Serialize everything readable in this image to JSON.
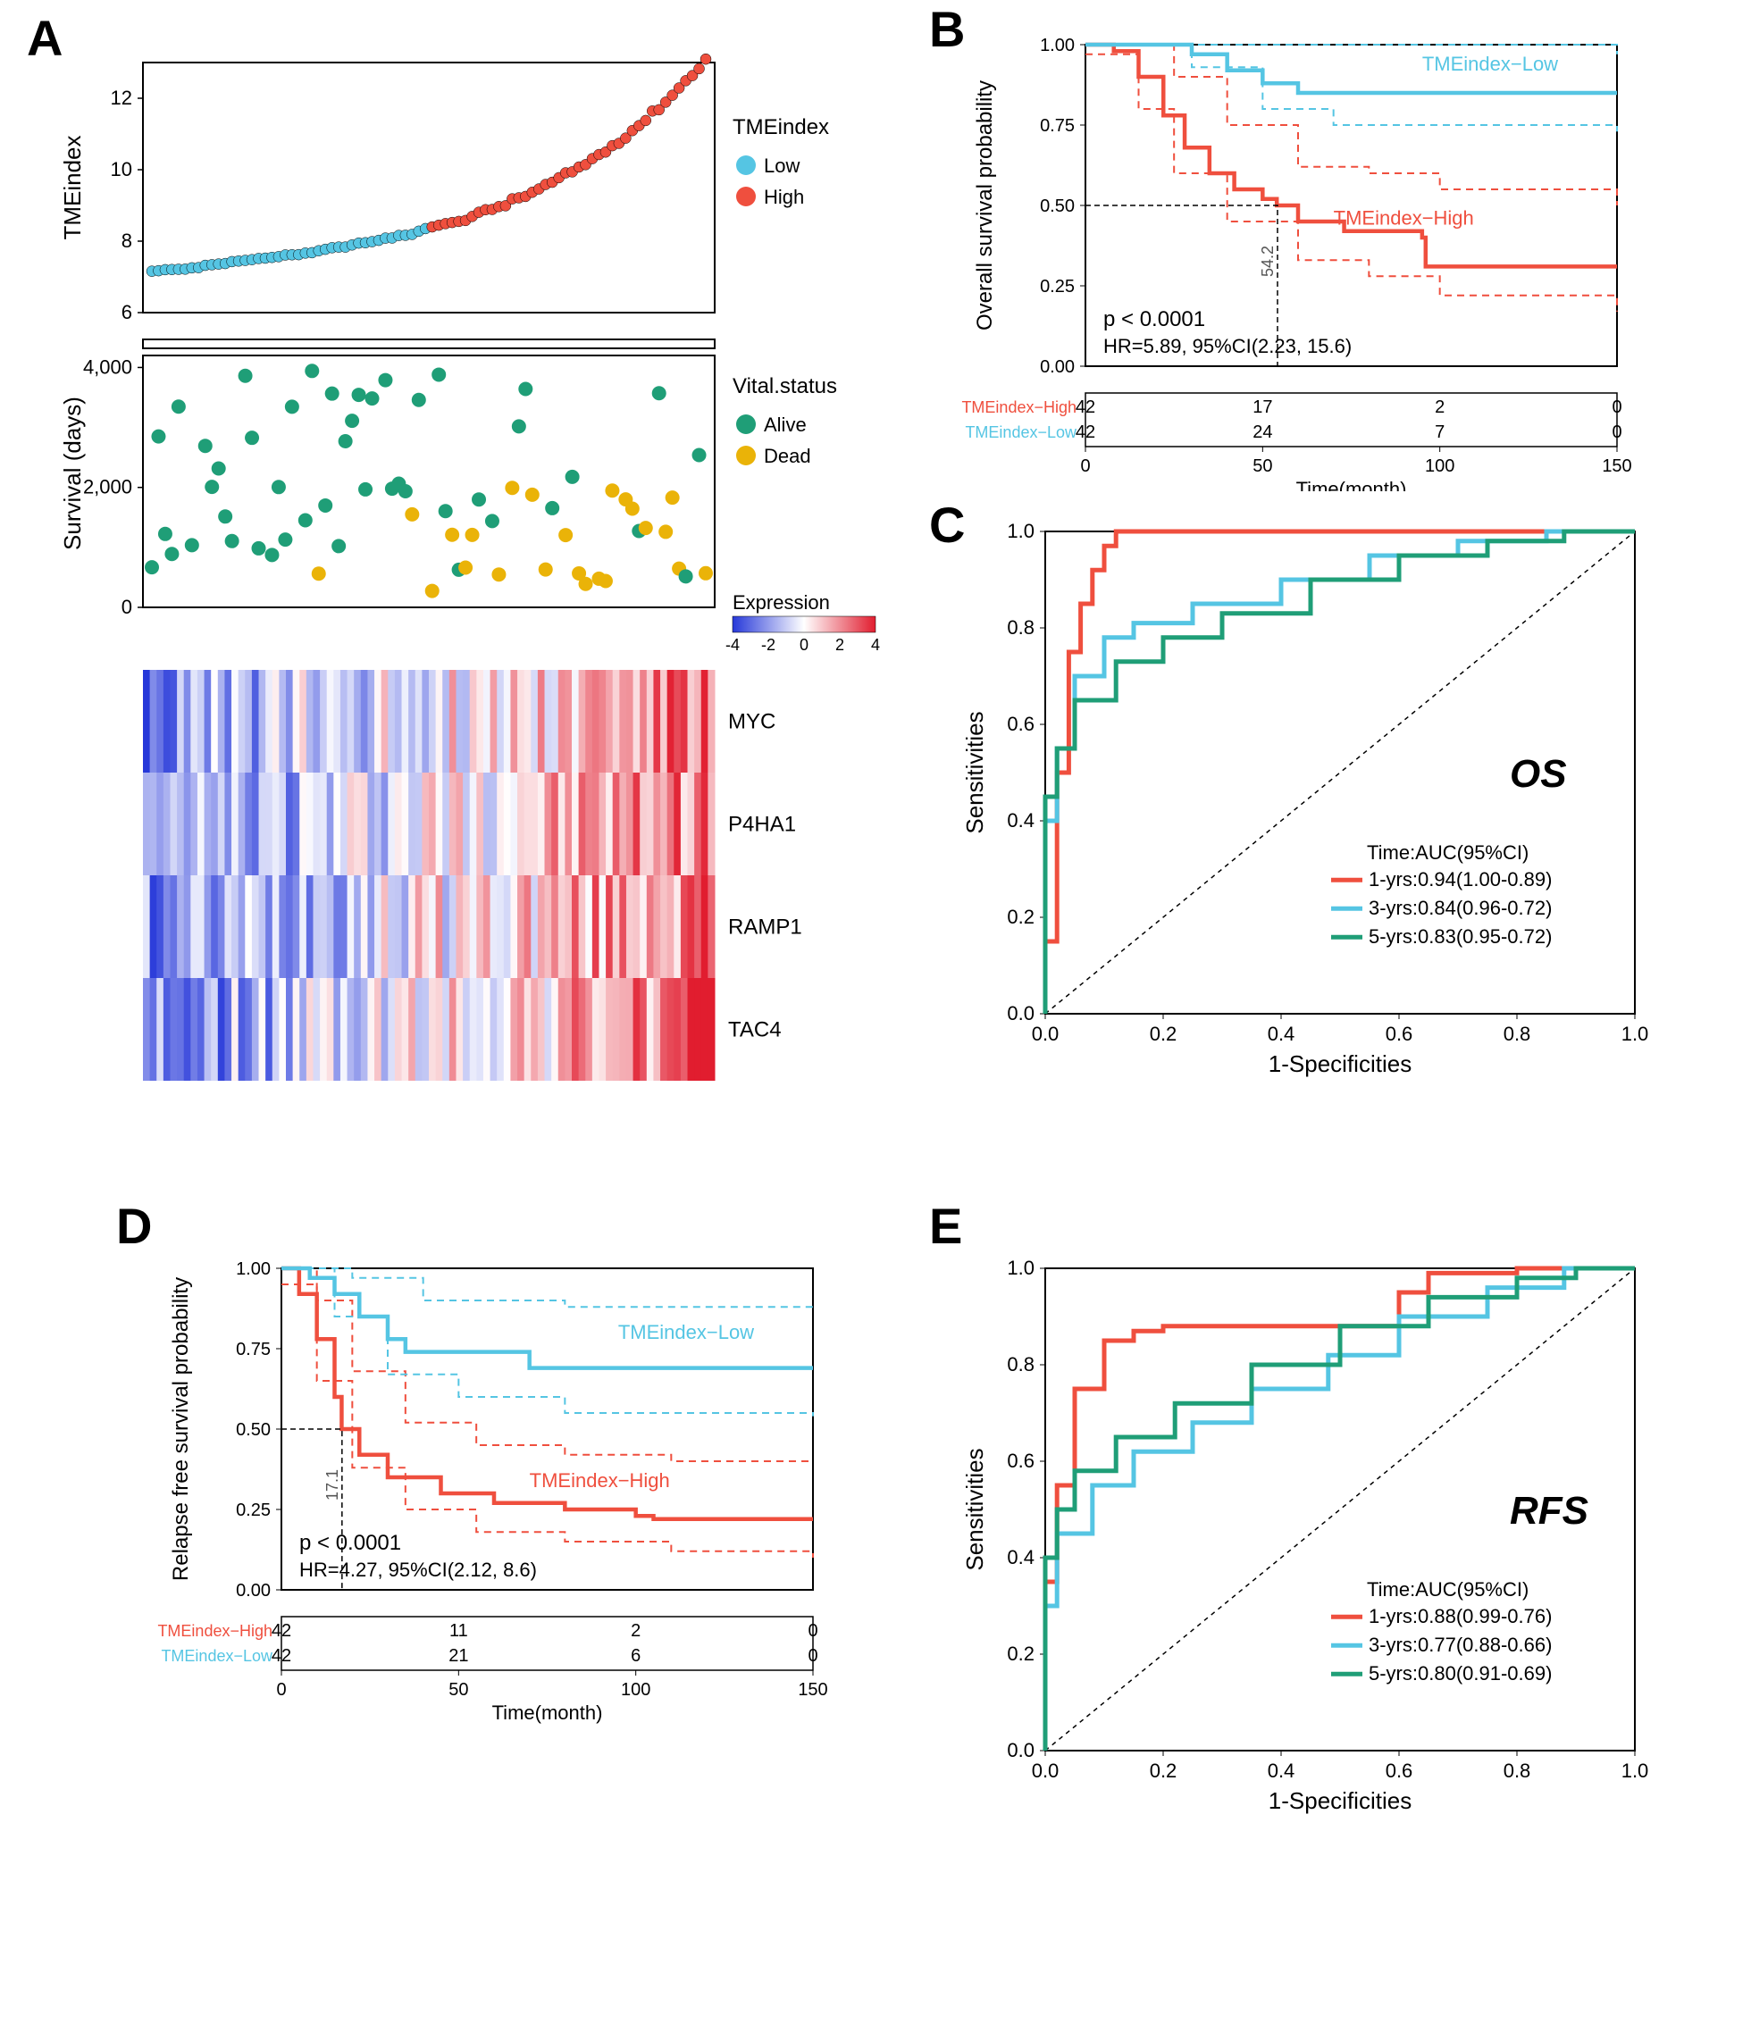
{
  "labels": {
    "A": "A",
    "B": "B",
    "C": "C",
    "D": "D",
    "E": "E"
  },
  "colors": {
    "low": "#55c5e3",
    "high": "#ef4f3e",
    "alive": "#1f9e77",
    "dead": "#eab308",
    "heat_low": "#2638d9",
    "heat_mid": "#ffffff",
    "heat_high": "#e11d2f",
    "roc1": "#ef4f3e",
    "roc3": "#55c5e3",
    "roc5": "#1f9e77",
    "axis": "#000000",
    "grid": "#e0e0e0"
  },
  "panelA": {
    "tme": {
      "ylabel": "TMEindex",
      "ylim": [
        6,
        13
      ],
      "yticks": [
        6,
        8,
        10,
        12
      ],
      "n": 84,
      "legend_title": "TMEindex",
      "legend": [
        "Low",
        "High"
      ]
    },
    "survival": {
      "ylabel": "Survival (days)",
      "ylim": [
        0,
        4200
      ],
      "yticks": [
        0,
        2000,
        4000
      ],
      "ytick_labels": [
        "0",
        "2,000",
        "4,000"
      ],
      "n": 84,
      "legend_title": "Vital.status",
      "legend": [
        "Alive",
        "Dead"
      ]
    },
    "heatmap": {
      "genes": [
        "MYC",
        "P4HA1",
        "RAMP1",
        "TAC4"
      ],
      "legend_title": "Expression",
      "legend_ticks": [
        -4,
        -2,
        0,
        2,
        4
      ]
    }
  },
  "panelB": {
    "ylabel": "Overall survival probability",
    "xlabel": "Time(month)",
    "ylim": [
      0,
      1
    ],
    "yticks": [
      0,
      0.25,
      0.5,
      0.75,
      1.0
    ],
    "ytick_labels": [
      "0.00",
      "0.25",
      "0.50",
      "0.75",
      "1.00"
    ],
    "xlim": [
      0,
      150
    ],
    "xticks": [
      0,
      50,
      100,
      150
    ],
    "p_text": "p < 0.0001",
    "hr_text": "HR=5.89, 95%CI(2.23, 15.6)",
    "median_text": "54.2",
    "group_high": "TMEindex−High",
    "group_low": "TMEindex−Low",
    "risk_table": {
      "rows": [
        "TMEindex−High",
        "TMEindex−Low"
      ],
      "values": [
        [
          "42",
          "17",
          "2",
          "0"
        ],
        [
          "42",
          "24",
          "7",
          "0"
        ]
      ]
    },
    "curve_high": [
      [
        0,
        1.0
      ],
      [
        8,
        0.98
      ],
      [
        15,
        0.9
      ],
      [
        22,
        0.78
      ],
      [
        28,
        0.68
      ],
      [
        35,
        0.6
      ],
      [
        42,
        0.55
      ],
      [
        50,
        0.52
      ],
      [
        54,
        0.5
      ],
      [
        60,
        0.45
      ],
      [
        73,
        0.42
      ],
      [
        95,
        0.4
      ],
      [
        96,
        0.31
      ],
      [
        150,
        0.31
      ]
    ],
    "curve_low": [
      [
        0,
        1.0
      ],
      [
        25,
        1.0
      ],
      [
        30,
        0.97
      ],
      [
        40,
        0.92
      ],
      [
        50,
        0.88
      ],
      [
        60,
        0.85
      ],
      [
        150,
        0.85
      ]
    ],
    "ci_high_upper": [
      [
        0,
        1.0
      ],
      [
        15,
        1.0
      ],
      [
        25,
        0.9
      ],
      [
        40,
        0.75
      ],
      [
        60,
        0.62
      ],
      [
        80,
        0.6
      ],
      [
        100,
        0.55
      ],
      [
        150,
        0.5
      ]
    ],
    "ci_high_lower": [
      [
        0,
        0.97
      ],
      [
        15,
        0.8
      ],
      [
        25,
        0.6
      ],
      [
        40,
        0.45
      ],
      [
        60,
        0.33
      ],
      [
        80,
        0.28
      ],
      [
        100,
        0.22
      ],
      [
        150,
        0.17
      ]
    ],
    "ci_low_upper": [
      [
        0,
        1.0
      ],
      [
        50,
        1.0
      ],
      [
        150,
        0.97
      ]
    ],
    "ci_low_lower": [
      [
        0,
        1.0
      ],
      [
        30,
        0.93
      ],
      [
        50,
        0.8
      ],
      [
        70,
        0.75
      ],
      [
        150,
        0.73
      ]
    ]
  },
  "panelC": {
    "title": "OS",
    "ylabel": "Sensitivities",
    "xlabel": "1-Specificities",
    "ticks": [
      0.0,
      0.2,
      0.4,
      0.6,
      0.8,
      1.0
    ],
    "legend_title": "Time:AUC(95%CI)",
    "legend": [
      "1-yrs:0.94(1.00-0.89)",
      "3-yrs:0.84(0.96-0.72)",
      "5-yrs:0.83(0.95-0.72)"
    ],
    "roc1": [
      [
        0,
        0
      ],
      [
        0.02,
        0.15
      ],
      [
        0.04,
        0.5
      ],
      [
        0.06,
        0.75
      ],
      [
        0.08,
        0.85
      ],
      [
        0.1,
        0.92
      ],
      [
        0.12,
        0.97
      ],
      [
        0.15,
        1.0
      ],
      [
        1.0,
        1.0
      ]
    ],
    "roc3": [
      [
        0,
        0
      ],
      [
        0.02,
        0.4
      ],
      [
        0.05,
        0.55
      ],
      [
        0.1,
        0.7
      ],
      [
        0.15,
        0.78
      ],
      [
        0.25,
        0.81
      ],
      [
        0.4,
        0.85
      ],
      [
        0.55,
        0.9
      ],
      [
        0.7,
        0.95
      ],
      [
        0.85,
        0.98
      ],
      [
        1.0,
        1.0
      ]
    ],
    "roc5": [
      [
        0,
        0
      ],
      [
        0.02,
        0.45
      ],
      [
        0.05,
        0.55
      ],
      [
        0.12,
        0.65
      ],
      [
        0.2,
        0.73
      ],
      [
        0.3,
        0.78
      ],
      [
        0.45,
        0.83
      ],
      [
        0.6,
        0.9
      ],
      [
        0.75,
        0.95
      ],
      [
        0.88,
        0.98
      ],
      [
        1.0,
        1.0
      ]
    ]
  },
  "panelD": {
    "ylabel": "Relapse free survival probability",
    "xlabel": "Time(month)",
    "ylim": [
      0,
      1
    ],
    "yticks": [
      0,
      0.25,
      0.5,
      0.75,
      1.0
    ],
    "ytick_labels": [
      "0.00",
      "0.25",
      "0.50",
      "0.75",
      "1.00"
    ],
    "xlim": [
      0,
      150
    ],
    "xticks": [
      0,
      50,
      100,
      150
    ],
    "p_text": "p < 0.0001",
    "hr_text": "HR=4.27, 95%CI(2.12, 8.6)",
    "median_text": "17.1",
    "group_high": "TMEindex−High",
    "group_low": "TMEindex−Low",
    "risk_table": {
      "rows": [
        "TMEindex−High",
        "TMEindex−Low"
      ],
      "values": [
        [
          "42",
          "11",
          "2",
          "0"
        ],
        [
          "42",
          "21",
          "6",
          "0"
        ]
      ]
    },
    "curve_high": [
      [
        0,
        1.0
      ],
      [
        5,
        0.92
      ],
      [
        10,
        0.78
      ],
      [
        15,
        0.6
      ],
      [
        17,
        0.5
      ],
      [
        22,
        0.42
      ],
      [
        30,
        0.35
      ],
      [
        45,
        0.3
      ],
      [
        60,
        0.27
      ],
      [
        80,
        0.25
      ],
      [
        100,
        0.23
      ],
      [
        105,
        0.22
      ],
      [
        150,
        0.22
      ]
    ],
    "curve_low": [
      [
        0,
        1.0
      ],
      [
        8,
        0.97
      ],
      [
        15,
        0.92
      ],
      [
        22,
        0.85
      ],
      [
        30,
        0.78
      ],
      [
        35,
        0.74
      ],
      [
        65,
        0.74
      ],
      [
        70,
        0.69
      ],
      [
        150,
        0.69
      ]
    ],
    "ci_high_upper": [
      [
        0,
        1.0
      ],
      [
        10,
        0.9
      ],
      [
        20,
        0.68
      ],
      [
        35,
        0.52
      ],
      [
        55,
        0.45
      ],
      [
        80,
        0.42
      ],
      [
        110,
        0.4
      ],
      [
        150,
        0.4
      ]
    ],
    "ci_high_lower": [
      [
        0,
        0.95
      ],
      [
        10,
        0.65
      ],
      [
        20,
        0.38
      ],
      [
        35,
        0.25
      ],
      [
        55,
        0.18
      ],
      [
        80,
        0.15
      ],
      [
        110,
        0.12
      ],
      [
        150,
        0.1
      ]
    ],
    "ci_low_upper": [
      [
        0,
        1.0
      ],
      [
        20,
        0.97
      ],
      [
        40,
        0.9
      ],
      [
        80,
        0.88
      ],
      [
        150,
        0.87
      ]
    ],
    "ci_low_lower": [
      [
        0,
        1.0
      ],
      [
        15,
        0.85
      ],
      [
        30,
        0.67
      ],
      [
        50,
        0.6
      ],
      [
        80,
        0.55
      ],
      [
        150,
        0.54
      ]
    ]
  },
  "panelE": {
    "title": "RFS",
    "ylabel": "Sensitivities",
    "xlabel": "1-Specificities",
    "ticks": [
      0.0,
      0.2,
      0.4,
      0.6,
      0.8,
      1.0
    ],
    "legend_title": "Time:AUC(95%CI)",
    "legend": [
      "1-yrs:0.88(0.99-0.76)",
      "3-yrs:0.77(0.88-0.66)",
      "5-yrs:0.80(0.91-0.69)"
    ],
    "roc1": [
      [
        0,
        0
      ],
      [
        0.02,
        0.35
      ],
      [
        0.05,
        0.55
      ],
      [
        0.1,
        0.75
      ],
      [
        0.15,
        0.85
      ],
      [
        0.2,
        0.87
      ],
      [
        0.6,
        0.88
      ],
      [
        0.65,
        0.95
      ],
      [
        0.8,
        0.99
      ],
      [
        1.0,
        1.0
      ]
    ],
    "roc3": [
      [
        0,
        0
      ],
      [
        0.02,
        0.3
      ],
      [
        0.08,
        0.45
      ],
      [
        0.15,
        0.55
      ],
      [
        0.25,
        0.62
      ],
      [
        0.35,
        0.68
      ],
      [
        0.48,
        0.75
      ],
      [
        0.6,
        0.82
      ],
      [
        0.75,
        0.9
      ],
      [
        0.88,
        0.96
      ],
      [
        1.0,
        1.0
      ]
    ],
    "roc5": [
      [
        0,
        0
      ],
      [
        0.02,
        0.4
      ],
      [
        0.05,
        0.5
      ],
      [
        0.12,
        0.58
      ],
      [
        0.22,
        0.65
      ],
      [
        0.35,
        0.72
      ],
      [
        0.5,
        0.8
      ],
      [
        0.65,
        0.88
      ],
      [
        0.8,
        0.94
      ],
      [
        0.9,
        0.98
      ],
      [
        1.0,
        1.0
      ]
    ]
  }
}
